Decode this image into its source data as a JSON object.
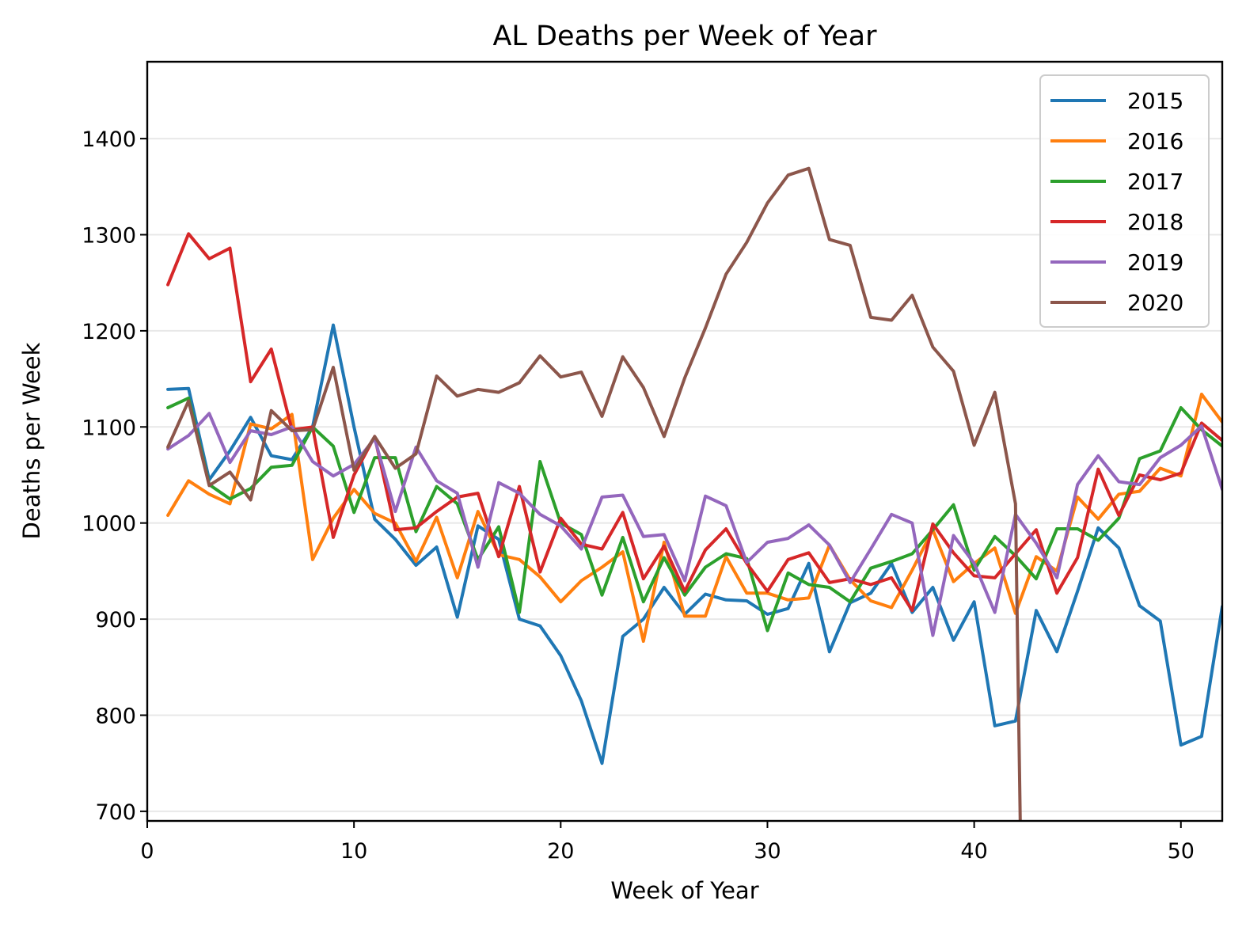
{
  "chart_data": {
    "type": "line",
    "title": "AL Deaths per Week of Year",
    "xlabel": "Week of Year",
    "ylabel": "Deaths per Week",
    "xlim": [
      0,
      52
    ],
    "ylim": [
      690,
      1480
    ],
    "xticks": [
      0,
      10,
      20,
      30,
      40,
      50
    ],
    "yticks": [
      700,
      800,
      900,
      1000,
      1100,
      1200,
      1300,
      1400
    ],
    "grid": "horizontal",
    "legend_position": "top-right",
    "x": [
      1,
      2,
      3,
      4,
      5,
      6,
      7,
      8,
      9,
      10,
      11,
      12,
      13,
      14,
      15,
      16,
      17,
      18,
      19,
      20,
      21,
      22,
      23,
      24,
      25,
      26,
      27,
      28,
      29,
      30,
      31,
      32,
      33,
      34,
      35,
      36,
      37,
      38,
      39,
      40,
      41,
      42,
      43,
      44,
      45,
      46,
      47,
      48,
      49,
      50,
      51,
      52
    ],
    "series": [
      {
        "name": "2015",
        "color": "#1f77b4",
        "values": [
          1139,
          1140,
          1045,
          1075,
          1110,
          1070,
          1066,
          1100,
          1206,
          1100,
          1004,
          983,
          956,
          975,
          902,
          997,
          983,
          900,
          893,
          862,
          815,
          750,
          882,
          900,
          933,
          905,
          926,
          920,
          919,
          905,
          911,
          958,
          866,
          917,
          927,
          958,
          907,
          933,
          878,
          918,
          789,
          794,
          909,
          866,
          929,
          995,
          974,
          914,
          898,
          769,
          778,
          913
        ]
      },
      {
        "name": "2016",
        "color": "#ff7f0e",
        "values": [
          1008,
          1044,
          1030,
          1020,
          1103,
          1098,
          1113,
          962,
          1005,
          1035,
          1010,
          1000,
          960,
          1006,
          943,
          1012,
          967,
          962,
          944,
          918,
          940,
          954,
          970,
          877,
          980,
          903,
          903,
          965,
          927,
          927,
          920,
          922,
          977,
          941,
          919,
          912,
          951,
          993,
          939,
          958,
          974,
          906,
          965,
          950,
          1027,
          1004,
          1030,
          1033,
          1057,
          1049,
          1134,
          1105
        ]
      },
      {
        "name": "2017",
        "color": "#2ca02c",
        "values": [
          1120,
          1130,
          1040,
          1025,
          1036,
          1058,
          1060,
          1100,
          1080,
          1011,
          1068,
          1068,
          991,
          1038,
          1020,
          962,
          996,
          907,
          1064,
          1000,
          988,
          925,
          985,
          918,
          964,
          925,
          954,
          968,
          963,
          888,
          948,
          936,
          933,
          918,
          953,
          960,
          968,
          993,
          1019,
          951,
          986,
          966,
          942,
          994,
          994,
          982,
          1005,
          1067,
          1075,
          1120,
          1097,
          1080
        ]
      },
      {
        "name": "2018",
        "color": "#d62728",
        "values": [
          1248,
          1301,
          1275,
          1286,
          1147,
          1181,
          1097,
          1100,
          985,
          1050,
          1090,
          993,
          995,
          1012,
          1027,
          1031,
          965,
          1038,
          949,
          1005,
          978,
          973,
          1011,
          942,
          976,
          929,
          972,
          994,
          958,
          929,
          962,
          969,
          938,
          942,
          936,
          943,
          909,
          999,
          969,
          945,
          943,
          968,
          993,
          927,
          964,
          1056,
          1008,
          1050,
          1045,
          1052,
          1104,
          1086
        ]
      },
      {
        "name": "2019",
        "color": "#9467bd",
        "values": [
          1077,
          1091,
          1114,
          1063,
          1096,
          1092,
          1100,
          1064,
          1049,
          1061,
          1088,
          1012,
          1079,
          1044,
          1031,
          954,
          1042,
          1031,
          1009,
          997,
          973,
          1027,
          1029,
          986,
          988,
          940,
          1028,
          1018,
          959,
          980,
          984,
          998,
          977,
          938,
          973,
          1009,
          1000,
          883,
          987,
          958,
          907,
          1009,
          979,
          943,
          1040,
          1070,
          1043,
          1040,
          1068,
          1081,
          1101,
          1035
        ]
      },
      {
        "name": "2020",
        "color": "#8c564b",
        "values": [
          1079,
          1127,
          1039,
          1053,
          1024,
          1117,
          1096,
          1097,
          1162,
          1055,
          1090,
          1057,
          1072,
          1153,
          1132,
          1139,
          1136,
          1146,
          1174,
          1152,
          1157,
          1111,
          1173,
          1141,
          1090,
          1151,
          1203,
          1259,
          1292,
          1333,
          1362,
          1369,
          1295,
          1289,
          1214,
          1211,
          1237,
          1183,
          1158,
          1081,
          1136,
          1020,
          null,
          null,
          null,
          null,
          null,
          null,
          null,
          null,
          null,
          null
        ]
      }
    ]
  }
}
